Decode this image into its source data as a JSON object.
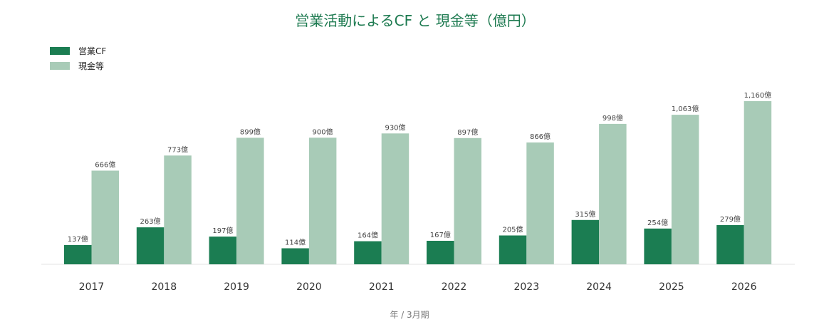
{
  "chart_data": {
    "type": "bar",
    "title": "営業活動によるCF と 現金等（億円）",
    "xlabel": "年 / 3月期",
    "ylabel": "",
    "categories": [
      "2017",
      "2018",
      "2019",
      "2020",
      "2021",
      "2022",
      "2023",
      "2024",
      "2025",
      "2026"
    ],
    "series": [
      {
        "name": "営業CF",
        "color": "#1b7d52",
        "values": [
          137,
          263,
          197,
          114,
          164,
          167,
          205,
          315,
          254,
          279
        ],
        "labels": [
          "137億",
          "263億",
          "197億",
          "114億",
          "164億",
          "167億",
          "205億",
          "315億",
          "254億",
          "279億"
        ]
      },
      {
        "name": "現金等",
        "color": "#a8cbb7",
        "values": [
          666,
          773,
          899,
          900,
          930,
          897,
          866,
          998,
          1063,
          1160
        ],
        "labels": [
          "666億",
          "773億",
          "899億",
          "900億",
          "930億",
          "897億",
          "866億",
          "998億",
          "1,063億",
          "1,160億"
        ]
      }
    ],
    "ylim": [
      0,
      1200
    ],
    "grid": false,
    "legend": "top-left"
  }
}
